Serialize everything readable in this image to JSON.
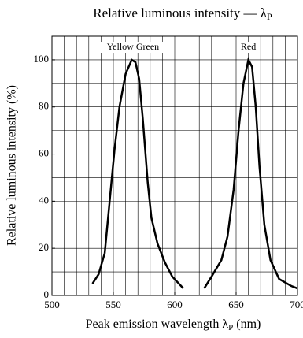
{
  "chart_data": {
    "type": "line",
    "title": [
      "Relative luminous intensity — λ",
      "P"
    ],
    "xlabel": [
      "Peak emission wavelength λ",
      "P",
      " (nm)"
    ],
    "ylabel": "Relative luminous intensity   (%)",
    "xlim": [
      500,
      700
    ],
    "ylim": [
      0,
      110
    ],
    "xticks": [
      500,
      550,
      600,
      650,
      700
    ],
    "yticks": [
      0,
      20,
      40,
      60,
      80,
      100
    ],
    "xgrid": [
      510,
      520,
      530,
      540,
      550,
      560,
      570,
      580,
      590,
      600,
      610,
      620,
      630,
      640,
      650,
      660,
      670,
      680,
      690
    ],
    "ygrid": [
      10,
      20,
      30,
      40,
      50,
      60,
      70,
      80,
      90,
      100
    ],
    "grid": true,
    "series": [
      {
        "name": "Yellow Green",
        "color": "#000000",
        "x": [
          533,
          538,
          543,
          547,
          551,
          555,
          560,
          565,
          568,
          571,
          574,
          578,
          581,
          586,
          592,
          598,
          607
        ],
        "values": [
          5,
          9,
          18,
          40,
          62,
          80,
          94,
          100,
          99,
          92,
          75,
          48,
          33,
          22,
          14,
          8,
          3
        ],
        "label_x": 566
      },
      {
        "name": "Red",
        "color": "#000000",
        "x": [
          624,
          630,
          638,
          643,
          648,
          652,
          656,
          660,
          663,
          666,
          669,
          673,
          678,
          685,
          695,
          700
        ],
        "values": [
          3,
          8,
          15,
          25,
          45,
          70,
          90,
          100,
          97,
          80,
          55,
          30,
          15,
          7,
          4,
          3
        ],
        "label_x": 660
      }
    ]
  }
}
